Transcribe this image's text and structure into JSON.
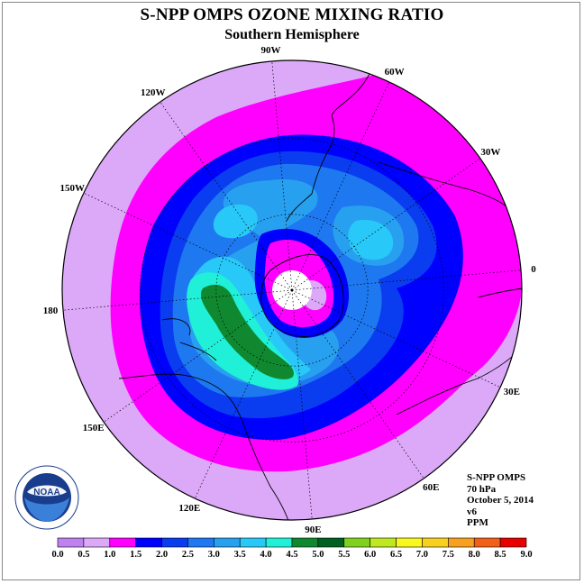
{
  "title": "S-NPP OMPS OZONE MIXING RATIO",
  "subtitle": "Southern Hemisphere",
  "longitude_labels": [
    {
      "text": "90W",
      "angle": 270
    },
    {
      "text": "60W",
      "angle": 300
    },
    {
      "text": "30W",
      "angle": 330
    },
    {
      "text": "0",
      "angle": 0
    },
    {
      "text": "30E",
      "angle": 30
    },
    {
      "text": "60E",
      "angle": 60
    },
    {
      "text": "90E",
      "angle": 90
    },
    {
      "text": "120E",
      "angle": 120
    },
    {
      "text": "150E",
      "angle": 150
    },
    {
      "text": "180",
      "angle": 180
    },
    {
      "text": "150W",
      "angle": 210
    },
    {
      "text": "120W",
      "angle": 240
    }
  ],
  "info": {
    "instrument": "S-NPP OMPS",
    "pressure": "70 hPa",
    "date": "October 5, 2014",
    "version": "v6",
    "units": "PPM"
  },
  "logo": {
    "text": "NOAA",
    "icon": "noaa-logo"
  },
  "colorbar": {
    "ticks": [
      "0.0",
      "0.5",
      "1.0",
      "1.5",
      "2.0",
      "2.5",
      "3.0",
      "3.5",
      "4.0",
      "4.5",
      "5.0",
      "5.5",
      "6.0",
      "6.5",
      "7.0",
      "7.5",
      "8.0",
      "8.5",
      "9.0"
    ],
    "colors": [
      "#c080f0",
      "#dca8f8",
      "#ff00ff",
      "#0000ff",
      "#0a3cf0",
      "#1e78f0",
      "#28a0f0",
      "#28c8f8",
      "#20f0d8",
      "#108830",
      "#006020",
      "#80d020",
      "#c0e820",
      "#f8f820",
      "#f8d020",
      "#f8a020",
      "#f06018",
      "#e80000",
      "#905030"
    ]
  },
  "map_levels": [
    {
      "value": 0.5,
      "color": "#dca8f8"
    },
    {
      "value": 1.0,
      "color": "#ff00ff"
    },
    {
      "value": 1.5,
      "color": "#0000ff"
    },
    {
      "value": 2.0,
      "color": "#0a3cf0"
    },
    {
      "value": 2.5,
      "color": "#1e78f0"
    },
    {
      "value": 3.0,
      "color": "#28a0f0"
    },
    {
      "value": 3.5,
      "color": "#28c8f8"
    },
    {
      "value": 4.0,
      "color": "#20f0d8"
    },
    {
      "value": 4.5,
      "color": "#108830"
    }
  ]
}
